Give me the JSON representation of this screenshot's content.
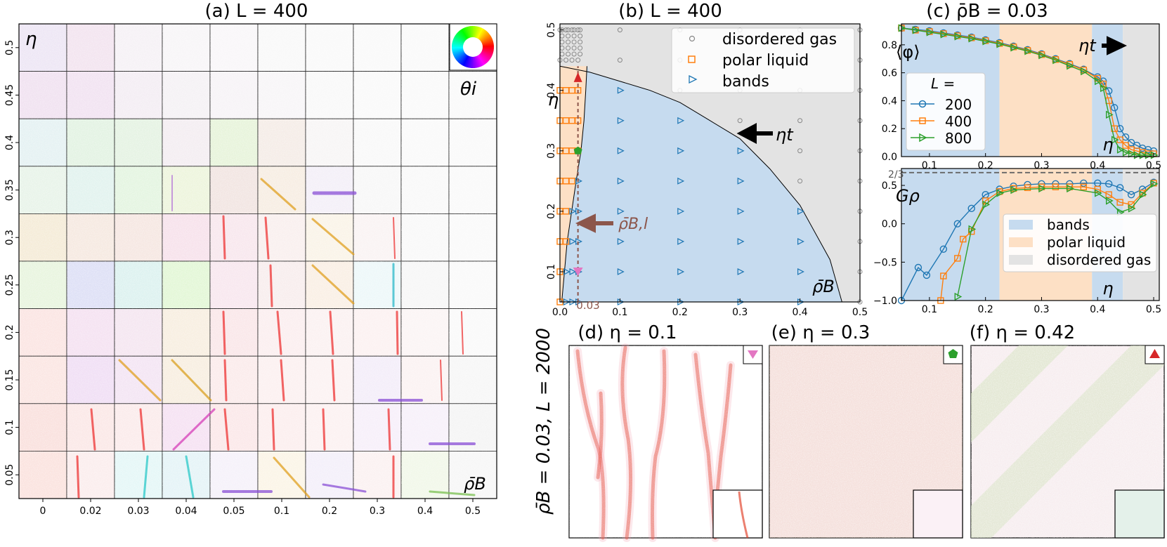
{
  "panel_a": {
    "title": "(a) L = 400",
    "eta_label": "η",
    "theta_label": "θi",
    "rho_label": "ρ̄B",
    "row_ticks": [
      "0.5",
      "0.45",
      "0.4",
      "0.35",
      "0.3",
      "0.25",
      "0.2",
      "0.15",
      "0.1",
      "0.05"
    ],
    "col_ticks": [
      "0",
      "0.02",
      "0.03",
      "0.04",
      "0.05",
      "0.1",
      "0.2",
      "0.3",
      "0.4",
      "0.5"
    ]
  },
  "panel_b": {
    "title": "(b) L = 400",
    "eta_label": "η",
    "rho_label": "ρ̄B",
    "eta_t_label": "ηt",
    "rho_bl_label": "ρ̄B,l",
    "marker_label": "0.03",
    "legend": [
      "disordered gas",
      "polar liquid",
      "bands"
    ],
    "x_ticks": [
      "0.0",
      "0.1",
      "0.2",
      "0.3",
      "0.4",
      "0.5"
    ],
    "y_ticks": [
      "0.1",
      "0.2",
      "0.3",
      "0.4",
      "0.5"
    ]
  },
  "panel_c": {
    "title": "(c) ρ̄B = 0.03",
    "top_ylabel": "⟨φ⟩",
    "bottom_ylabel": "Gρ",
    "eta_label": "η",
    "eta_t_label": "ηt",
    "legend_title": "L =",
    "legend": [
      "200",
      "400",
      "800"
    ],
    "region_legend": [
      "bands",
      "polar liquid",
      "disordered gas"
    ],
    "top_y_ticks": [
      "0.0",
      "0.2",
      "0.4",
      "0.6",
      "0.8"
    ],
    "bottom_y_ticks": [
      "−1.0",
      "−0.5",
      "0.0",
      "0.5"
    ],
    "two_thirds": "2/3",
    "x_ticks": [
      "0.1",
      "0.2",
      "0.3",
      "0.4",
      "0.5"
    ]
  },
  "panel_d": {
    "title": "(d) η = 0.1"
  },
  "panel_e": {
    "title": "(e) η = 0.3"
  },
  "panel_f": {
    "title": "(f) η = 0.42"
  },
  "side_label": "ρ̄B = 0.03,  L = 2000",
  "colors": {
    "bands": "#c6dbef",
    "polar": "#fde0c5",
    "gas": "#e3e3e3",
    "blue": "#1f77b4",
    "orange": "#ff7f0e",
    "green": "#2ca02c",
    "brown": "#8c564b",
    "pink": "#e377c2",
    "red": "#d62728"
  },
  "chart_data": [
    {
      "type": "scatter",
      "title": "(b) L = 400",
      "xlabel": "ρ̄B",
      "ylabel": "η",
      "xlim": [
        0,
        0.5
      ],
      "ylim": [
        0.05,
        0.51
      ],
      "phase_boundary_eta_t": {
        "x": [
          0,
          0.05,
          0.1,
          0.15,
          0.2,
          0.25,
          0.3,
          0.35,
          0.4,
          0.45,
          0.47
        ],
        "y": [
          0.44,
          0.43,
          0.415,
          0.4,
          0.38,
          0.35,
          0.32,
          0.27,
          0.21,
          0.12,
          0.05
        ]
      },
      "phase_boundary_rho_bl": {
        "x": [
          0.003,
          0.012,
          0.027,
          0.035,
          0.04,
          0.043,
          0.045
        ],
        "y": [
          0.05,
          0.15,
          0.25,
          0.3,
          0.35,
          0.4,
          0.44
        ]
      }
    },
    {
      "type": "line",
      "title": "(c) ρ̄B = 0.03",
      "xlabel": "η",
      "ylabel": "⟨φ⟩",
      "xlim": [
        0.05,
        0.51
      ],
      "ylim": [
        0,
        0.95
      ],
      "regions": [
        {
          "name": "bands",
          "from": 0.05,
          "to": 0.225
        },
        {
          "name": "polar liquid",
          "from": 0.225,
          "to": 0.39
        },
        {
          "name": "bands",
          "from": 0.39,
          "to": 0.445
        },
        {
          "name": "disordered gas",
          "from": 0.445,
          "to": 0.51
        }
      ],
      "series": [
        {
          "name": "200",
          "x": [
            0.05,
            0.075,
            0.1,
            0.125,
            0.15,
            0.175,
            0.2,
            0.225,
            0.25,
            0.275,
            0.3,
            0.325,
            0.35,
            0.375,
            0.4,
            0.41,
            0.42,
            0.43,
            0.44,
            0.45,
            0.46,
            0.47,
            0.48,
            0.49,
            0.5
          ],
          "y": [
            0.92,
            0.91,
            0.9,
            0.885,
            0.87,
            0.855,
            0.835,
            0.815,
            0.79,
            0.765,
            0.735,
            0.7,
            0.665,
            0.625,
            0.57,
            0.54,
            0.47,
            0.35,
            0.2,
            0.14,
            0.1,
            0.08,
            0.06,
            0.05,
            0.04
          ]
        },
        {
          "name": "400",
          "x": [
            0.05,
            0.075,
            0.1,
            0.125,
            0.15,
            0.175,
            0.2,
            0.225,
            0.25,
            0.275,
            0.3,
            0.325,
            0.35,
            0.375,
            0.4,
            0.41,
            0.42,
            0.43,
            0.44,
            0.45,
            0.46,
            0.47,
            0.48,
            0.49,
            0.5
          ],
          "y": [
            0.92,
            0.905,
            0.895,
            0.88,
            0.865,
            0.85,
            0.83,
            0.81,
            0.785,
            0.76,
            0.73,
            0.695,
            0.66,
            0.62,
            0.56,
            0.52,
            0.4,
            0.2,
            0.12,
            0.08,
            0.05,
            0.04,
            0.03,
            0.02,
            0.02
          ]
        },
        {
          "name": "800",
          "x": [
            0.05,
            0.075,
            0.1,
            0.125,
            0.15,
            0.175,
            0.2,
            0.225,
            0.25,
            0.275,
            0.3,
            0.325,
            0.35,
            0.375,
            0.4,
            0.41,
            0.42,
            0.43,
            0.44,
            0.45,
            0.46,
            0.47,
            0.48,
            0.49,
            0.5
          ],
          "y": [
            0.92,
            0.905,
            0.89,
            0.875,
            0.86,
            0.845,
            0.825,
            0.805,
            0.78,
            0.755,
            0.725,
            0.69,
            0.65,
            0.61,
            0.54,
            0.49,
            0.3,
            0.12,
            0.05,
            0.03,
            0.02,
            0.01,
            0.01,
            0.01,
            0.01
          ]
        }
      ]
    },
    {
      "type": "line",
      "xlabel": "η",
      "ylabel": "Gρ",
      "xlim": [
        0.05,
        0.51
      ],
      "ylim": [
        -1.0,
        0.72
      ],
      "reference_line": 0.6667,
      "series": [
        {
          "name": "200",
          "x": [
            0.05,
            0.08,
            0.095,
            0.125,
            0.15,
            0.175,
            0.2,
            0.225,
            0.25,
            0.275,
            0.3,
            0.325,
            0.35,
            0.375,
            0.4,
            0.42,
            0.44,
            0.46,
            0.48,
            0.5
          ],
          "y": [
            -1.0,
            -0.57,
            -0.67,
            -0.33,
            0.0,
            0.2,
            0.38,
            0.45,
            0.49,
            0.51,
            0.52,
            0.52,
            0.52,
            0.53,
            0.53,
            0.52,
            0.47,
            0.38,
            0.45,
            0.54
          ]
        },
        {
          "name": "400",
          "x": [
            0.12,
            0.125,
            0.15,
            0.16,
            0.175,
            0.2,
            0.225,
            0.25,
            0.275,
            0.3,
            0.325,
            0.35,
            0.375,
            0.4,
            0.42,
            0.44,
            0.46,
            0.48,
            0.5
          ],
          "y": [
            -1.0,
            -0.68,
            -0.45,
            -0.2,
            -0.1,
            0.3,
            0.42,
            0.46,
            0.47,
            0.48,
            0.48,
            0.48,
            0.48,
            0.45,
            0.38,
            0.28,
            0.25,
            0.4,
            0.53
          ]
        },
        {
          "name": "800",
          "x": [
            0.15,
            0.175,
            0.2,
            0.225,
            0.25,
            0.3,
            0.35,
            0.4,
            0.42,
            0.44,
            0.46,
            0.48,
            0.5
          ],
          "y": [
            -0.95,
            -0.07,
            0.25,
            0.4,
            0.44,
            0.46,
            0.46,
            0.4,
            0.3,
            0.15,
            0.2,
            0.38,
            0.52
          ]
        }
      ]
    }
  ]
}
